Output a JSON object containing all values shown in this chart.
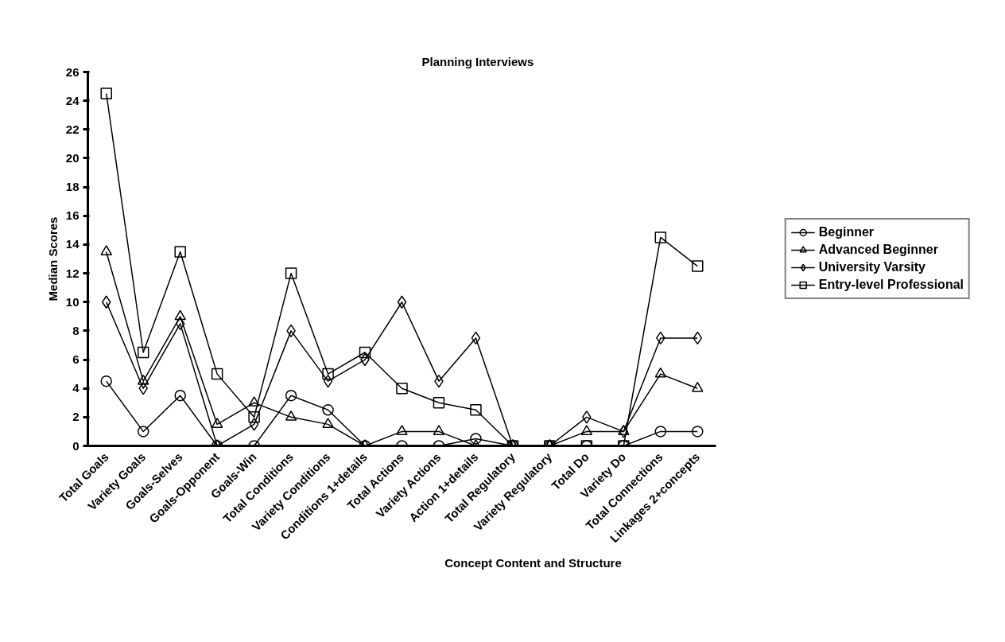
{
  "chart_data": {
    "type": "line",
    "title": "Planning Interviews",
    "xlabel": "Concept Content and Structure",
    "ylabel": "Median Scores",
    "categories": [
      "Total Goals",
      "Variety Goals",
      "Goals-Selves",
      "Goals-Opponent",
      "Goals-Win",
      "Total Conditions",
      "Variety Conditions",
      "Conditions 1+details",
      "Total Actions",
      "Variety Actions",
      "Action 1+details",
      "Total Regulatory",
      "Variety Regulatory",
      "Total Do",
      "Variety Do",
      "Total Connections",
      "Linkages 2+concepts"
    ],
    "series": [
      {
        "name": "Beginner",
        "color": "#000000",
        "marker": "circle",
        "values": [
          4.5,
          1,
          3.5,
          0,
          0,
          3.5,
          2.5,
          0,
          0,
          0,
          0.5,
          0,
          0,
          0,
          0,
          1,
          1
        ]
      },
      {
        "name": "Advanced Beginner",
        "color": "#000000",
        "marker": "triangle",
        "values": [
          13.5,
          4.5,
          9,
          1.5,
          3,
          2,
          1.5,
          0,
          1,
          1,
          0,
          0,
          0,
          1,
          1,
          5,
          4
        ]
      },
      {
        "name": "University Varsity",
        "color": "#000000",
        "marker": "diamond",
        "values": [
          10,
          4,
          8.5,
          0,
          1.5,
          8,
          4.5,
          6,
          10,
          4.5,
          7.5,
          0,
          0,
          2,
          1,
          7.5,
          7.5
        ]
      },
      {
        "name": "Entry-level Professional",
        "color": "#000000",
        "marker": "square",
        "values": [
          24.5,
          6.5,
          13.5,
          5,
          2,
          12,
          5,
          6.5,
          4,
          3,
          2.5,
          0,
          0,
          0,
          0,
          14.5,
          12.5
        ]
      }
    ],
    "ylim": [
      0,
      26
    ],
    "yticks": [
      0,
      2,
      4,
      6,
      8,
      10,
      12,
      14,
      16,
      18,
      20,
      22,
      24,
      26
    ],
    "grid": false,
    "legend": "right",
    "line_style": "solid"
  }
}
